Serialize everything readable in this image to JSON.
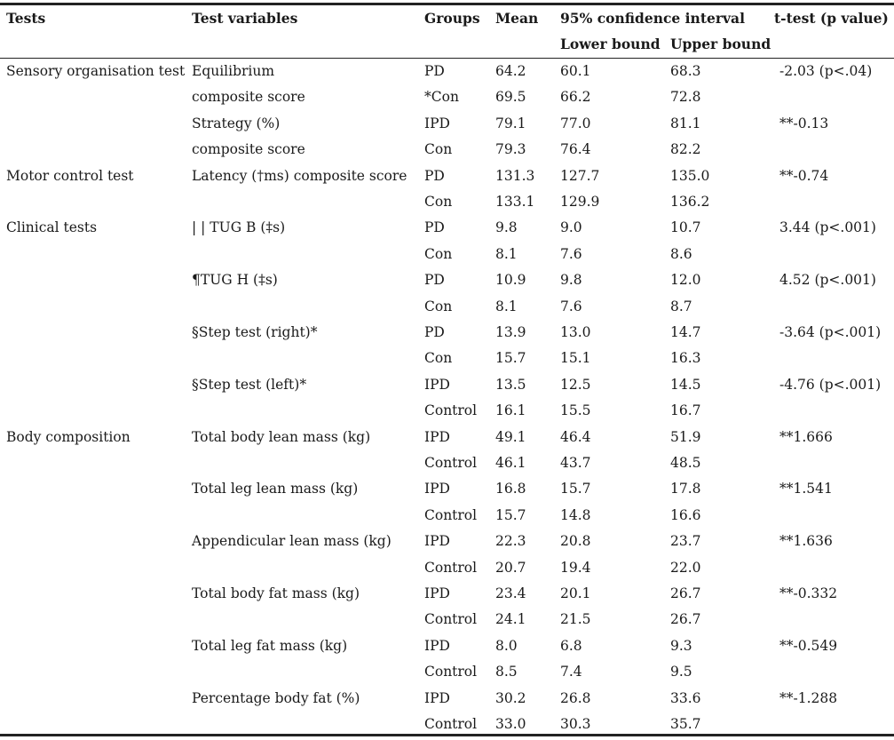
{
  "header": {
    "tests": "Tests",
    "variables": "Test variables",
    "groups": "Groups",
    "mean": "Mean",
    "ci": "95% confidence interval",
    "lower": "Lower bound",
    "upper": "Upper bound",
    "ttest": "t-test (p value)"
  },
  "rows": [
    {
      "test": "Sensory organisation test",
      "variable": "Equilibrium",
      "group": "PD",
      "mean": "64.2",
      "lower": "60.1",
      "upper": "68.3",
      "t": "-2.03 (p<.04)"
    },
    {
      "test": "",
      "variable": "composite score",
      "group": "*Con",
      "mean": "69.5",
      "lower": "66.2",
      "upper": "72.8",
      "t": ""
    },
    {
      "test": "",
      "variable": "Strategy (%)",
      "group": "IPD",
      "mean": "79.1",
      "lower": "77.0",
      "upper": "81.1",
      "t": "**-0.13"
    },
    {
      "test": "",
      "variable": "composite score",
      "group": "Con",
      "mean": "79.3",
      "lower": "76.4",
      "upper": "82.2",
      "t": ""
    },
    {
      "test": "Motor control test",
      "variable": "Latency (†ms) composite score",
      "group": "PD",
      "mean": "131.3",
      "lower": "127.7",
      "upper": "135.0",
      "t": "**-0.74"
    },
    {
      "test": "",
      "variable": "",
      "group": "Con",
      "mean": "133.1",
      "lower": "129.9",
      "upper": "136.2",
      "t": ""
    },
    {
      "test": "Clinical tests",
      "variable": "| | TUG B (‡s)",
      "group": "PD",
      "mean": "9.8",
      "lower": "9.0",
      "upper": "10.7",
      "t": "3.44 (p<.001)"
    },
    {
      "test": "",
      "variable": "",
      "group": "Con",
      "mean": "8.1",
      "lower": "7.6",
      "upper": "8.6",
      "t": ""
    },
    {
      "test": "",
      "variable": "¶TUG H (‡s)",
      "group": "PD",
      "mean": "10.9",
      "lower": "9.8",
      "upper": "12.0",
      "t": "4.52 (p<.001)"
    },
    {
      "test": "",
      "variable": "",
      "group": "Con",
      "mean": "8.1",
      "lower": "7.6",
      "upper": "8.7",
      "t": ""
    },
    {
      "test": "",
      "variable": "§Step test (right)*",
      "group": "PD",
      "mean": "13.9",
      "lower": "13.0",
      "upper": "14.7",
      "t": "-3.64 (p<.001)"
    },
    {
      "test": "",
      "variable": "",
      "group": "Con",
      "mean": "15.7",
      "lower": "15.1",
      "upper": "16.3",
      "t": ""
    },
    {
      "test": "",
      "variable": "§Step test (left)*",
      "group": "IPD",
      "mean": "13.5",
      "lower": "12.5",
      "upper": "14.5",
      "t": "-4.76 (p<.001)"
    },
    {
      "test": "",
      "variable": "",
      "group": "Control",
      "mean": "16.1",
      "lower": "15.5",
      "upper": "16.7",
      "t": ""
    },
    {
      "test": "Body composition",
      "variable": "Total body lean mass (kg)",
      "group": "IPD",
      "mean": "49.1",
      "lower": "46.4",
      "upper": "51.9",
      "t": "**1.666"
    },
    {
      "test": "",
      "variable": "",
      "group": "Control",
      "mean": "46.1",
      "lower": "43.7",
      "upper": "48.5",
      "t": ""
    },
    {
      "test": "",
      "variable": "Total leg lean mass (kg)",
      "group": "IPD",
      "mean": "16.8",
      "lower": "15.7",
      "upper": "17.8",
      "t": "**1.541"
    },
    {
      "test": "",
      "variable": "",
      "group": "Control",
      "mean": "15.7",
      "lower": "14.8",
      "upper": "16.6",
      "t": ""
    },
    {
      "test": "",
      "variable": "Appendicular lean mass (kg)",
      "group": "IPD",
      "mean": "22.3",
      "lower": "20.8",
      "upper": "23.7",
      "t": "**1.636"
    },
    {
      "test": "",
      "variable": "",
      "group": "Control",
      "mean": "20.7",
      "lower": "19.4",
      "upper": "22.0",
      "t": ""
    },
    {
      "test": "",
      "variable": "Total body fat mass (kg)",
      "group": "IPD",
      "mean": "23.4",
      "lower": "20.1",
      "upper": "26.7",
      "t": "**-0.332"
    },
    {
      "test": "",
      "variable": "",
      "group": "Control",
      "mean": "24.1",
      "lower": "21.5",
      "upper": "26.7",
      "t": ""
    },
    {
      "test": "",
      "variable": "Total leg fat mass (kg)",
      "group": "IPD",
      "mean": "8.0",
      "lower": "6.8",
      "upper": "9.3",
      "t": "**-0.549"
    },
    {
      "test": "",
      "variable": "",
      "group": "Control",
      "mean": "8.5",
      "lower": "7.4",
      "upper": "9.5",
      "t": ""
    },
    {
      "test": "",
      "variable": "Percentage body fat (%)",
      "group": "IPD",
      "mean": "30.2",
      "lower": "26.8",
      "upper": "33.6",
      "t": "**-1.288"
    },
    {
      "test": "",
      "variable": "",
      "group": "Control",
      "mean": "33.0",
      "lower": "30.3",
      "upper": "35.7",
      "t": ""
    }
  ]
}
